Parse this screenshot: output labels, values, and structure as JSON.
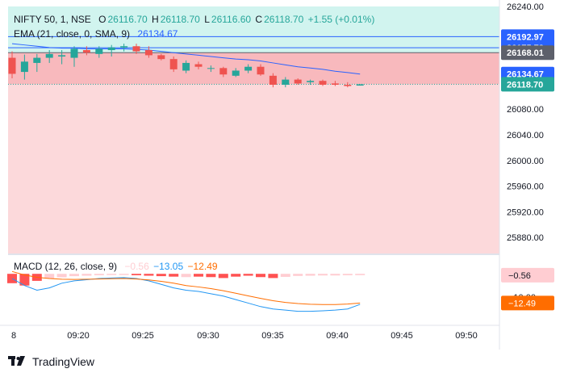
{
  "legend": {
    "symbol": "NIFTY 50, 1, NSE",
    "o_label": "O",
    "o": "26116.70",
    "h_label": "H",
    "h": "26118.70",
    "l_label": "L",
    "l": "26116.60",
    "c_label": "C",
    "c": "26118.70",
    "change": "+1.55 (+0.01%)",
    "ema_label": "EMA (21, close, 0, SMA, 9)",
    "ema_value": "26134.67",
    "macd_label": "MACD (12, 26, close, 9)",
    "macd_hist": "−0.56",
    "macd_line": "−13.05",
    "macd_signal": "−12.49"
  },
  "branding": {
    "logo": "TradingView"
  },
  "colors": {
    "up": "#26a69a",
    "down": "#ef5350",
    "ema": "#2962ff",
    "macd": "#2196f3",
    "signal": "#ff6d00",
    "zone_upper": "#d1f4ef",
    "zone_lower": "#fcd9db",
    "zone_mid": "#f8b9bd",
    "hist_down": "#ff5252",
    "hist_fade": "#ffcdd2"
  },
  "chart_data": {
    "type": "candlestick",
    "xaxis_ticks": [
      "8",
      "09:20",
      "09:25",
      "09:30",
      "09:35",
      "09:40",
      "09:45",
      "09:50"
    ],
    "yaxis_ticks": [
      "26240.00",
      "26080.00",
      "26040.00",
      "26000.00",
      "25960.00",
      "25920.00",
      "25880.00"
    ],
    "ylim": [
      25855,
      26240
    ],
    "price_labels": [
      {
        "value": 26192.97,
        "text": "26192.97",
        "bg": "#2962ff"
      },
      {
        "value": 26175.72,
        "text": "26175.72",
        "bg": "#2962ff"
      },
      {
        "value": 26168.01,
        "text": "26168.01",
        "bg": "#5d606b"
      },
      {
        "value": 26134.67,
        "text": "26134.67",
        "bg": "#2962ff"
      },
      {
        "value": 26118.7,
        "text": "26118.70",
        "bg": "#26a69a"
      }
    ],
    "hlines": [
      26192.97,
      26175.72,
      26168.01
    ],
    "zones": {
      "upper": [
        26168.01,
        26240
      ],
      "mid": [
        26118.7,
        26168.01
      ],
      "lower": [
        25855,
        26118.7
      ]
    },
    "candles": [
      {
        "o": 26160,
        "h": 26170,
        "l": 26128,
        "c": 26135
      },
      {
        "o": 26138,
        "h": 26165,
        "l": 26126,
        "c": 26154
      },
      {
        "o": 26152,
        "h": 26166,
        "l": 26138,
        "c": 26160
      },
      {
        "o": 26160,
        "h": 26172,
        "l": 26152,
        "c": 26166
      },
      {
        "o": 26162,
        "h": 26172,
        "l": 26150,
        "c": 26164
      },
      {
        "o": 26160,
        "h": 26178,
        "l": 26146,
        "c": 26174
      },
      {
        "o": 26172,
        "h": 26178,
        "l": 26164,
        "c": 26168
      },
      {
        "o": 26166,
        "h": 26178,
        "l": 26160,
        "c": 26174
      },
      {
        "o": 26172,
        "h": 26180,
        "l": 26162,
        "c": 26176
      },
      {
        "o": 26176,
        "h": 26182,
        "l": 26170,
        "c": 26178
      },
      {
        "o": 26178,
        "h": 26182,
        "l": 26166,
        "c": 26170
      },
      {
        "o": 26172,
        "h": 26178,
        "l": 26160,
        "c": 26164
      },
      {
        "o": 26164,
        "h": 26166,
        "l": 26156,
        "c": 26158
      },
      {
        "o": 26158,
        "h": 26162,
        "l": 26138,
        "c": 26142
      },
      {
        "o": 26140,
        "h": 26156,
        "l": 26136,
        "c": 26152
      },
      {
        "o": 26150,
        "h": 26154,
        "l": 26142,
        "c": 26146
      },
      {
        "o": 26144,
        "h": 26148,
        "l": 26138,
        "c": 26144
      },
      {
        "o": 26144,
        "h": 26146,
        "l": 26130,
        "c": 26134
      },
      {
        "o": 26132,
        "h": 26144,
        "l": 26130,
        "c": 26140
      },
      {
        "o": 26140,
        "h": 26150,
        "l": 26136,
        "c": 26146
      },
      {
        "o": 26146,
        "h": 26150,
        "l": 26132,
        "c": 26134
      },
      {
        "o": 26132,
        "h": 26136,
        "l": 26114,
        "c": 26118
      },
      {
        "o": 26118,
        "h": 26130,
        "l": 26114,
        "c": 26126
      },
      {
        "o": 26126,
        "h": 26128,
        "l": 26118,
        "c": 26120
      },
      {
        "o": 26122,
        "h": 26126,
        "l": 26118,
        "c": 26124
      },
      {
        "o": 26124,
        "h": 26126,
        "l": 26116,
        "c": 26118
      },
      {
        "o": 26120,
        "h": 26124,
        "l": 26116,
        "c": 26118
      },
      {
        "o": 26118,
        "h": 26122,
        "l": 26114,
        "c": 26116
      },
      {
        "o": 26116.7,
        "h": 26118.7,
        "l": 26116.6,
        "c": 26118.7
      }
    ],
    "ema": [
      26182,
      26180,
      26178,
      26176,
      26175,
      26175,
      26174,
      26174,
      26174,
      26174,
      26173,
      26172,
      26170,
      26168,
      26166,
      26164,
      26162,
      26160,
      26158,
      26157,
      26155,
      26152,
      26149,
      26146,
      26144,
      26142,
      26139,
      26137,
      26134.67
    ],
    "macd": {
      "ylim": [
        -22,
        8
      ],
      "tick": "−10.00",
      "right_labels": [
        {
          "value": -0.56,
          "text": "−0.56",
          "bg": "#ffcdd2",
          "fg": "#131722"
        },
        {
          "value": -12.49,
          "text": "−12.49",
          "bg": "#ff6d00",
          "fg": "#ffffff"
        }
      ],
      "histogram": [
        -4,
        -5,
        -3,
        -2,
        -1.5,
        -1,
        -0.8,
        -0.6,
        -0.5,
        -0.5,
        -0.6,
        -0.8,
        -1,
        -1.2,
        -1.4,
        -1.2,
        -1.4,
        -1.8,
        -1.2,
        -0.8,
        -1.4,
        -1.8,
        -1.3,
        -0.9,
        -0.8,
        -0.7,
        -0.7,
        -0.6,
        -0.56
      ],
      "macd_line": [
        -2,
        -5,
        -7,
        -6,
        -4,
        -3,
        -2.5,
        -2,
        -1.8,
        -1.6,
        -2,
        -3,
        -4.5,
        -6,
        -7,
        -7.5,
        -8.5,
        -9.5,
        -11,
        -12.5,
        -14,
        -15,
        -15.5,
        -16,
        -16,
        -15.8,
        -15.5,
        -15,
        -13.05
      ],
      "signal_line": [
        1,
        -0.5,
        -1.5,
        -2,
        -2.3,
        -2.4,
        -2.3,
        -2.2,
        -2.1,
        -2,
        -2.2,
        -2.6,
        -3.2,
        -4,
        -5,
        -5.6,
        -6.3,
        -7.2,
        -8.3,
        -9.4,
        -10.5,
        -11.5,
        -12.2,
        -12.7,
        -13,
        -13.1,
        -13.1,
        -12.9,
        -12.49
      ]
    }
  }
}
